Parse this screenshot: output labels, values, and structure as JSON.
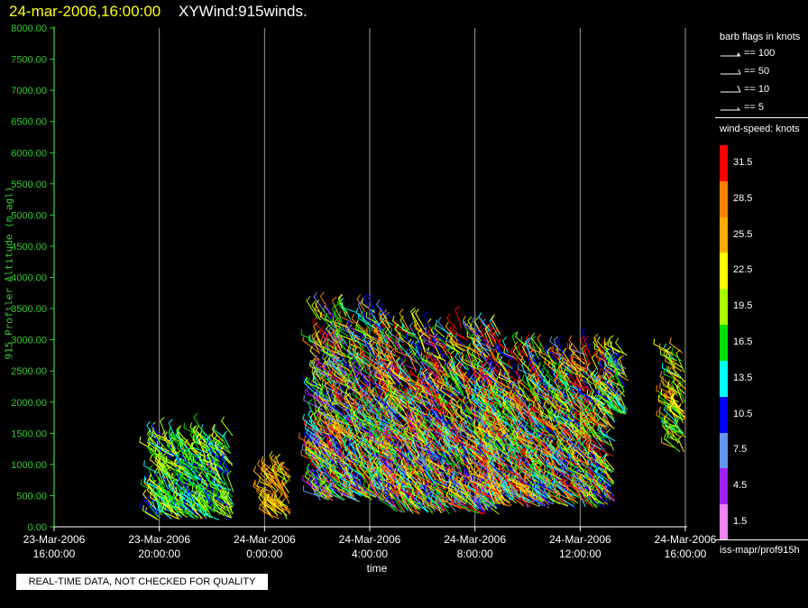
{
  "header": {
    "timestamp": "24-mar-2006,16:00:00",
    "product": "XYWind:915winds."
  },
  "notice": "REAL-TIME DATA, NOT CHECKED FOR QUALITY",
  "legend": {
    "barb_title": "barb flags in knots",
    "barb_flags": [
      {
        "label": "== 100",
        "icon": "barb-pennant-icon"
      },
      {
        "label": "== 50",
        "icon": "barb-flag-icon"
      },
      {
        "label": "== 10",
        "icon": "barb-full-icon"
      },
      {
        "label": "== 5",
        "icon": "barb-half-icon"
      }
    ],
    "speed_title": "wind-speed: knots",
    "speed_bins": [
      {
        "label": "31.5",
        "color": "#ff0000"
      },
      {
        "label": "28.5",
        "color": "#ff8000"
      },
      {
        "label": "25.5",
        "color": "#ffaa00"
      },
      {
        "label": "22.5",
        "color": "#ffff00"
      },
      {
        "label": "19.5",
        "color": "#aaff00"
      },
      {
        "label": "16.5",
        "color": "#00e000"
      },
      {
        "label": "13.5",
        "color": "#00ffff"
      },
      {
        "label": "10.5",
        "color": "#0000ff"
      },
      {
        "label": "7.5",
        "color": "#6495ed"
      },
      {
        "label": "4.5",
        "color": "#a020f0"
      },
      {
        "label": "1.5",
        "color": "#ee82ee"
      }
    ],
    "source": "iss-mapr/prof915h"
  },
  "chart_data": {
    "type": "scatter",
    "title": "",
    "xlabel": "time",
    "ylabel": "915 Profiler Altitude (m agl)",
    "ylim": [
      0,
      8000
    ],
    "yticks": [
      "0.00",
      "500.00",
      "1000.00",
      "1500.00",
      "2000.00",
      "2500.00",
      "3000.00",
      "3500.00",
      "4000.00",
      "4500.00",
      "5000.00",
      "5500.00",
      "6000.00",
      "6500.00",
      "7000.00",
      "7500.00",
      "8000.00"
    ],
    "xlim": [
      "2006-03-23T16:00",
      "2006-03-24T16:00"
    ],
    "xticks": [
      {
        "date": "23-Mar-2006",
        "time": "16:00:00"
      },
      {
        "date": "23-Mar-2006",
        "time": "20:00:00"
      },
      {
        "date": "24-Mar-2006",
        "time": "0:00:00"
      },
      {
        "date": "24-Mar-2006",
        "time": "4:00:00"
      },
      {
        "date": "24-Mar-2006",
        "time": "8:00:00"
      },
      {
        "date": "24-Mar-2006",
        "time": "12:00:00"
      },
      {
        "date": "24-Mar-2006",
        "time": "16:00:00"
      }
    ],
    "vertical_grid": true,
    "color_key": "wind speed (knots)",
    "series": [
      {
        "time_start": "2006-03-23T19:50",
        "time_end": "2006-03-23T22:50",
        "alt_min": 100,
        "alt_max": 1500,
        "speed_range": [
          10,
          24
        ]
      },
      {
        "time_start": "2006-03-24T00:10",
        "time_end": "2006-03-24T01:00",
        "alt_min": 100,
        "alt_max": 950,
        "speed_range": [
          20,
          30
        ]
      },
      {
        "time_start": "2006-03-24T02:00",
        "time_end": "2006-03-24T05:00",
        "alt_min": 400,
        "alt_max": 3500,
        "speed_range": [
          4,
          32
        ]
      },
      {
        "time_start": "2006-03-24T04:50",
        "time_end": "2006-03-24T09:00",
        "alt_min": 200,
        "alt_max": 3200,
        "speed_range": [
          4,
          34
        ]
      },
      {
        "time_start": "2006-03-24T08:30",
        "time_end": "2006-03-24T13:20",
        "alt_min": 300,
        "alt_max": 2900,
        "speed_range": [
          6,
          34
        ]
      },
      {
        "time_start": "2006-03-24T13:10",
        "time_end": "2006-03-24T13:50",
        "alt_min": 1800,
        "alt_max": 2900,
        "speed_range": [
          8,
          26
        ]
      },
      {
        "time_start": "2006-03-24T15:30",
        "time_end": "2006-03-24T16:00",
        "alt_min": 1200,
        "alt_max": 2900,
        "speed_range": [
          14,
          28
        ]
      }
    ]
  }
}
